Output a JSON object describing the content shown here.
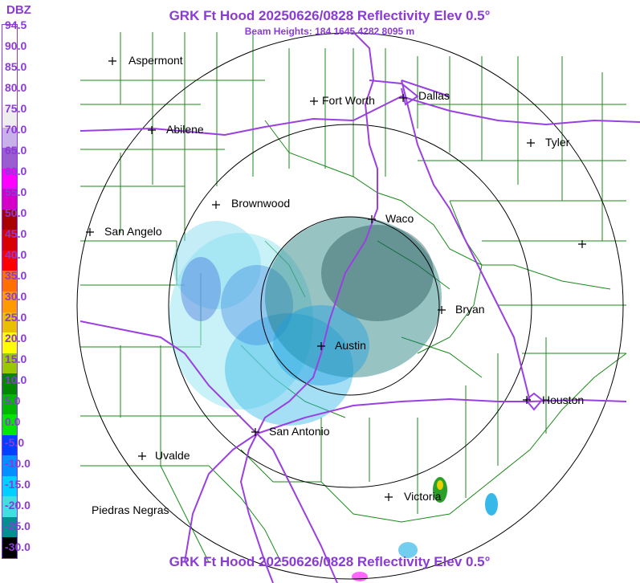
{
  "header": {
    "title": "GRK Ft Hood 20250626/0828 Reflectivity Elev 0.5°",
    "subtitle": "Beam Heights: 184 1645 4282 8095 m",
    "footer_title": "GRK Ft Hood 20250626/0828 Reflectivity Elev 0.5°"
  },
  "legend": {
    "title": "DBZ",
    "labels": [
      "94.5",
      "90.0",
      "85.0",
      "80.0",
      "75.0",
      "70.0",
      "65.0",
      "60.0",
      "55.0",
      "50.0",
      "45.0",
      "40.0",
      "35.0",
      "30.0",
      "25.0",
      "20.0",
      "15.0",
      "10.0",
      "5.0",
      "0.0",
      "-5.0",
      "-10.0",
      "-15.0",
      "-20.0",
      "-25.0",
      "-30.0"
    ],
    "colors": [
      "#ffffff",
      "#ffffff",
      "#ffffff",
      "#ffffff",
      "#eeeeee",
      "#c8b0e8",
      "#9a5cd0",
      "#ff00ff",
      "#d400c8",
      "#a80000",
      "#d80000",
      "#ff0000",
      "#ff7000",
      "#ff9a00",
      "#e8c000",
      "#ffff00",
      "#98c800",
      "#008800",
      "#00b800",
      "#00e800",
      "#0040ff",
      "#0090ff",
      "#00d0ff",
      "#40e0e0",
      "#009090",
      "#000000"
    ]
  },
  "cities": [
    {
      "name": "Aspermont",
      "label": "Aspermont"
    },
    {
      "name": "Abilene",
      "label": "Abilene"
    },
    {
      "name": "Fort Worth",
      "label": "Fort Worth"
    },
    {
      "name": "Dallas",
      "label": "Dallas"
    },
    {
      "name": "Tyler",
      "label": "Tyler"
    },
    {
      "name": "Brownwood",
      "label": "Brownwood"
    },
    {
      "name": "Waco",
      "label": "Waco"
    },
    {
      "name": "San Angelo",
      "label": "San Angelo"
    },
    {
      "name": "Bryan",
      "label": "Bryan"
    },
    {
      "name": "Austin",
      "label": "Austin"
    },
    {
      "name": "Houston",
      "label": "Houston"
    },
    {
      "name": "San Antonio",
      "label": "San Antonio"
    },
    {
      "name": "Uvalde",
      "label": "Uvalde"
    },
    {
      "name": "Victoria",
      "label": "Victoria"
    },
    {
      "name": "Piedras Negras",
      "label": "Piedras Negras"
    }
  ],
  "colors": {
    "accent": "#8a3bd6",
    "roads": "#9a40e0",
    "counties": "#1a8a1a",
    "rings": "#000000"
  }
}
